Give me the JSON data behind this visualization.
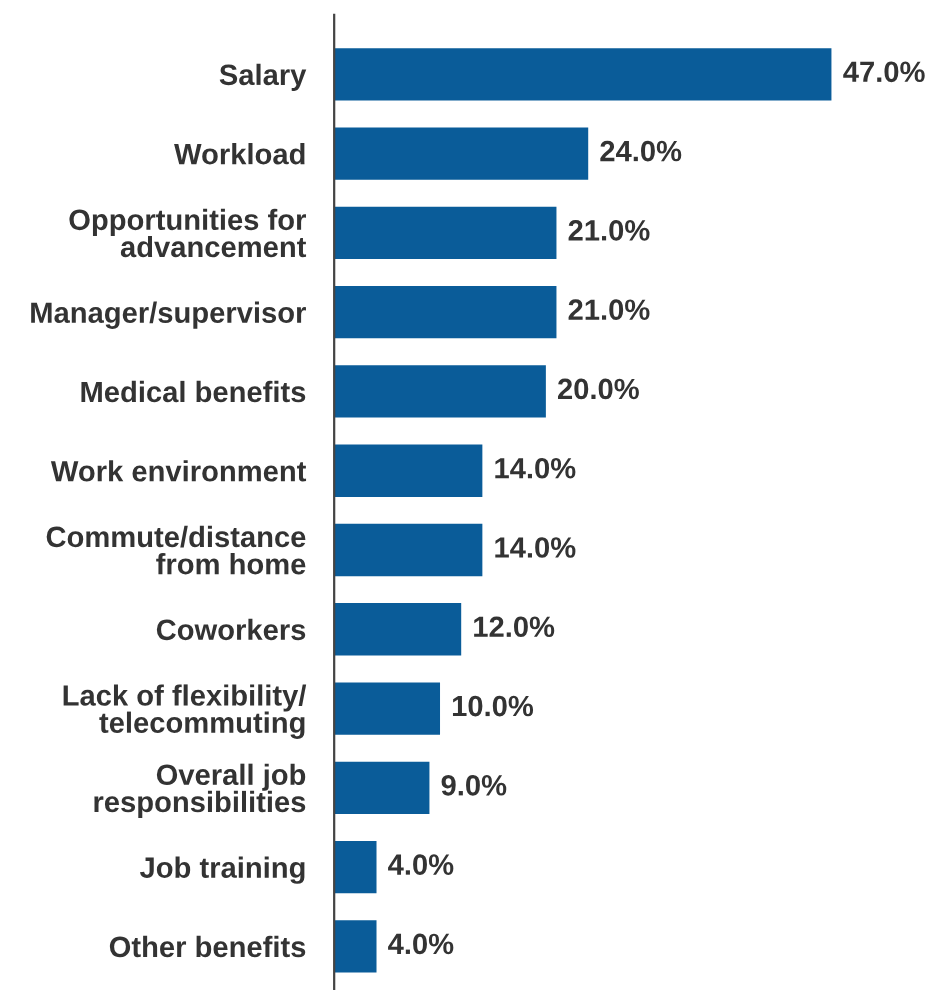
{
  "chart_data": {
    "type": "bar",
    "orientation": "horizontal",
    "categories": [
      "Salary",
      "Workload",
      "Opportunities for\nadvancement",
      "Manager/supervisor",
      "Medical benefits",
      "Work environment",
      "Commute/distance\nfrom home",
      "Coworkers",
      "Lack of flexibility/\ntelecommuting",
      "Overall job\nresponsibilities",
      "Job training",
      "Other benefits"
    ],
    "values": [
      47.0,
      24.0,
      21.0,
      21.0,
      20.0,
      14.0,
      14.0,
      12.0,
      10.0,
      9.0,
      4.0,
      4.0
    ],
    "value_labels": [
      "47.0%",
      "24.0%",
      "21.0%",
      "21.0%",
      "20.0%",
      "14.0%",
      "14.0%",
      "12.0%",
      "10.0%",
      "9.0%",
      "4.0%",
      "4.0%"
    ],
    "color": "#0a5c99",
    "grid": false,
    "legend": false
  }
}
